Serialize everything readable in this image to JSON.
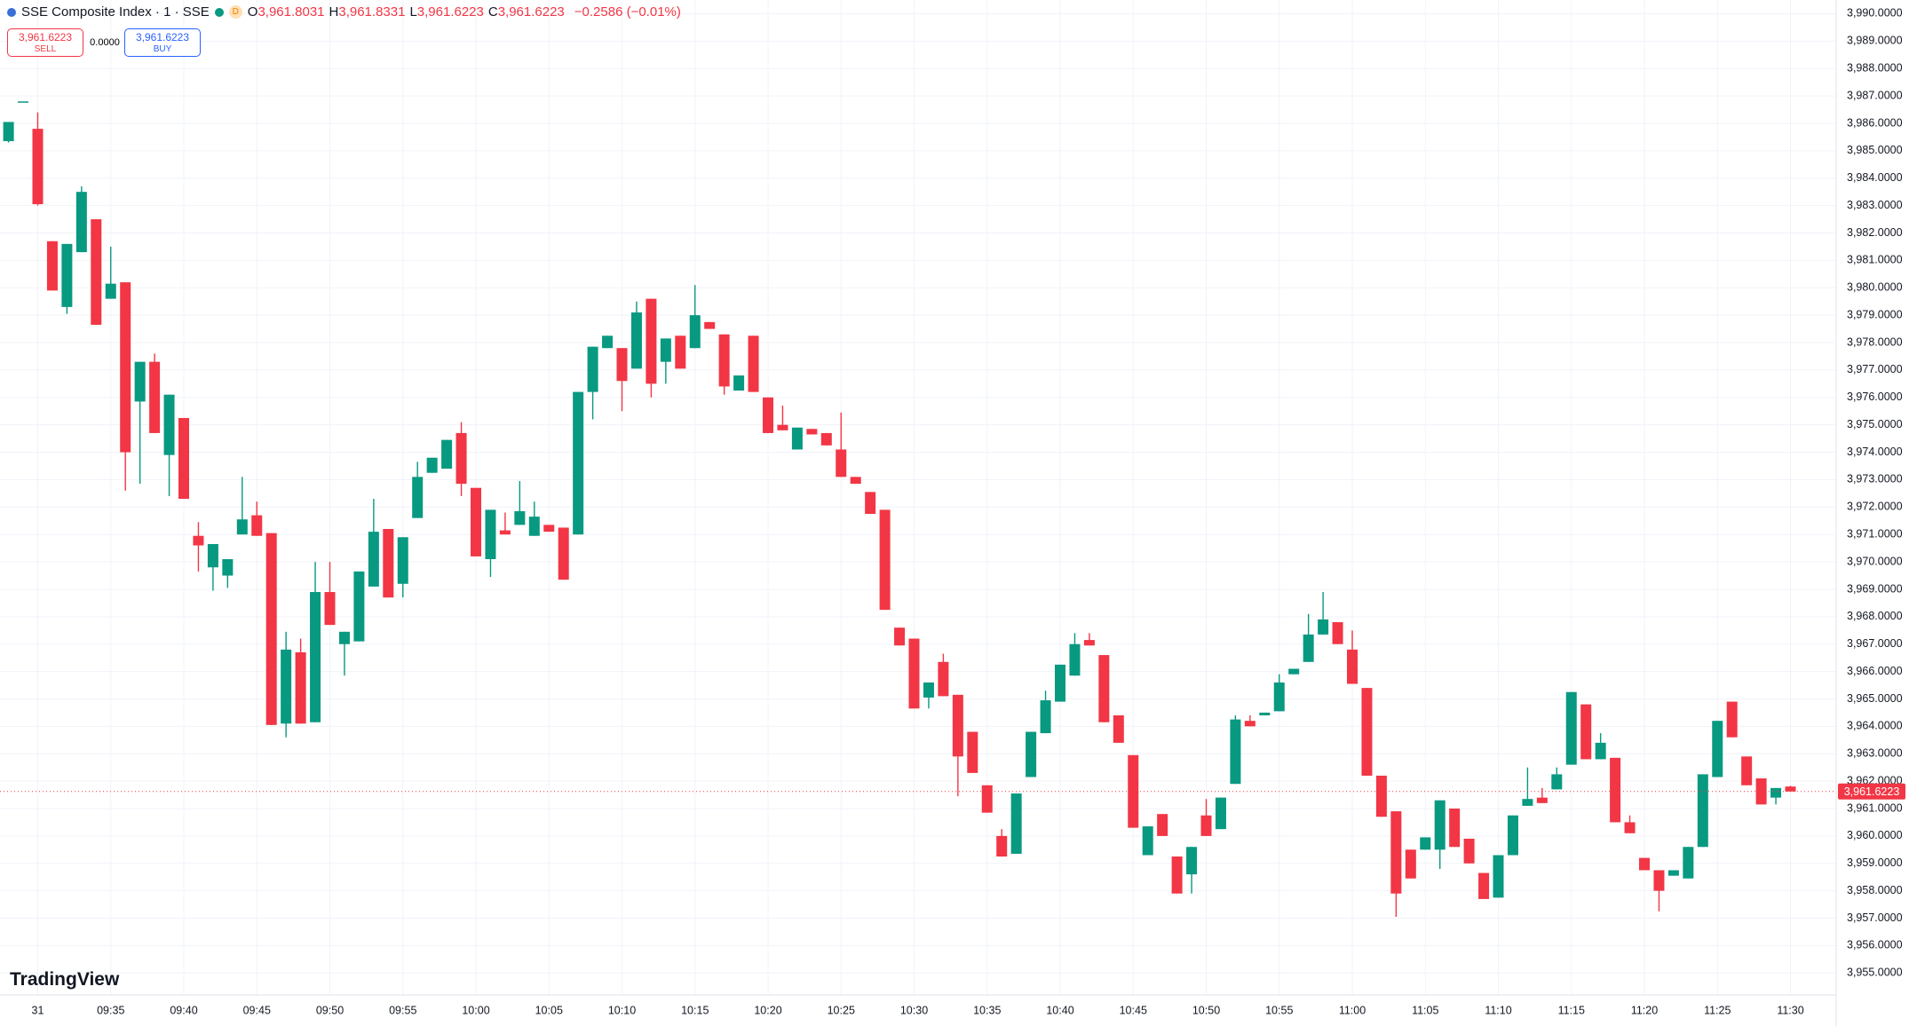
{
  "header": {
    "symbol": "SSE Composite Index · 1 · SSE",
    "badge": "D",
    "ohlc": [
      {
        "key": "O",
        "value": "3,961.8031"
      },
      {
        "key": "H",
        "value": "3,961.8331"
      },
      {
        "key": "L",
        "value": "3,961.6223"
      },
      {
        "key": "C",
        "value": "3,961.6223"
      }
    ],
    "change": "−0.2586 (−0.01%)"
  },
  "trade": {
    "sell_price": "3,961.6223",
    "sell": "SELL",
    "spread": "0.0000",
    "buy_price": "3,961.6223",
    "buy": "BUY"
  },
  "brand": "TradingView",
  "chart_data": {
    "type": "candlestick",
    "up_color": "#089981",
    "down_color": "#f23645",
    "grid": true,
    "categories": [
      null,
      null,
      "31",
      null,
      null,
      null,
      null,
      "09:35",
      null,
      null,
      null,
      null,
      "09:40",
      null,
      null,
      null,
      null,
      "09:45",
      null,
      null,
      null,
      null,
      "09:50",
      null,
      null,
      null,
      null,
      "09:55",
      null,
      null,
      null,
      null,
      "10:00",
      null,
      null,
      null,
      null,
      "10:05",
      null,
      null,
      null,
      null,
      "10:10",
      null,
      null,
      null,
      null,
      "10:15",
      null,
      null,
      null,
      null,
      "10:20",
      null,
      null,
      null,
      null,
      "10:25",
      null,
      null,
      null,
      null,
      "10:30",
      null,
      null,
      null,
      null,
      "10:35",
      null,
      null,
      null,
      null,
      "10:40",
      null,
      null,
      null,
      null,
      "10:45",
      null,
      null,
      null,
      null,
      "10:50",
      null,
      null,
      null,
      null,
      "10:55",
      null,
      null,
      null,
      null,
      "11:00",
      null,
      null,
      null,
      null,
      "11:05",
      null,
      null,
      null,
      null,
      "11:10",
      null,
      null,
      null,
      null,
      "11:15",
      null,
      null,
      null,
      null,
      "11:20",
      null,
      null,
      null,
      null,
      "11:25",
      null,
      null,
      null,
      null,
      "11:30"
    ],
    "open": [
      3985.35,
      3986.8,
      3985.8,
      3981.7,
      3979.3,
      3981.3,
      3982.5,
      3979.6,
      3980.2,
      3975.85,
      3977.3,
      3973.9,
      3975.25,
      3970.95,
      3969.8,
      3969.5,
      3971.0,
      3971.7,
      3971.05,
      3964.1,
      3966.7,
      3964.15,
      3968.9,
      3967.0,
      3967.1,
      3969.1,
      3971.2,
      3969.2,
      3971.6,
      3973.25,
      3973.4,
      3974.7,
      3972.7,
      3970.1,
      3971.15,
      3971.35,
      3970.95,
      3971.35,
      3971.25,
      3971.0,
      3976.2,
      3977.8,
      3977.8,
      3977.05,
      3979.6,
      3977.3,
      3978.25,
      3977.8,
      3978.75,
      3978.3,
      3976.25,
      3978.25,
      3976.0,
      3975.0,
      3974.1,
      3974.85,
      3974.7,
      3974.1,
      3973.1,
      3972.55,
      3971.9,
      3967.6,
      3967.2,
      3965.05,
      3966.35,
      3965.15,
      3963.8,
      3961.85,
      3960.0,
      3959.35,
      3962.15,
      3963.75,
      3964.9,
      3965.85,
      3967.15,
      3966.6,
      3964.4,
      3962.95,
      3959.3,
      3960.8,
      3959.25,
      3958.6,
      3960.75,
      3960.25,
      3961.9,
      3964.2,
      3964.4,
      3964.55,
      3965.9,
      3966.35,
      3967.35,
      3967.8,
      3966.8,
      3965.4,
      3962.2,
      3960.9,
      3959.5,
      3959.5,
      3959.5,
      3961.0,
      3959.9,
      3958.65,
      3957.75,
      3959.3,
      3961.1,
      3961.4,
      3961.7,
      3962.6,
      3964.8,
      3962.8,
      3962.85,
      3960.5,
      3959.2,
      3958.75,
      3958.55,
      3958.45,
      3959.6,
      3962.15,
      3964.9,
      3962.9,
      3962.1,
      3961.4,
      3961.8031
    ],
    "high": [
      3986.05,
      3986.8,
      3986.4,
      3981.7,
      3981.6,
      3983.7,
      3982.5,
      3981.5,
      3980.2,
      3977.3,
      3977.6,
      3976.1,
      3975.25,
      3971.45,
      3970.65,
      3970.1,
      3973.1,
      3972.2,
      3971.05,
      3967.45,
      3967.2,
      3970.0,
      3970.0,
      3967.45,
      3969.65,
      3972.3,
      3971.2,
      3970.9,
      3973.65,
      3973.8,
      3974.45,
      3975.1,
      3972.7,
      3971.9,
      3971.8,
      3972.95,
      3972.2,
      3971.35,
      3971.25,
      3976.2,
      3977.85,
      3978.25,
      3977.8,
      3979.5,
      3979.6,
      3978.15,
      3978.25,
      3980.1,
      3978.75,
      3978.3,
      3976.8,
      3978.25,
      3976.0,
      3975.7,
      3974.9,
      3974.85,
      3974.7,
      3975.45,
      3973.1,
      3972.55,
      3971.9,
      3967.6,
      3967.2,
      3965.6,
      3966.65,
      3965.15,
      3963.8,
      3961.85,
      3960.25,
      3961.55,
      3963.8,
      3965.3,
      3966.25,
      3967.4,
      3967.4,
      3966.6,
      3964.4,
      3962.95,
      3960.35,
      3960.8,
      3959.25,
      3959.6,
      3961.35,
      3961.4,
      3964.4,
      3964.4,
      3964.5,
      3965.9,
      3966.1,
      3968.1,
      3968.9,
      3967.8,
      3967.5,
      3965.4,
      3962.2,
      3960.9,
      3959.5,
      3959.95,
      3961.3,
      3961.0,
      3959.9,
      3958.65,
      3959.3,
      3960.75,
      3962.5,
      3961.75,
      3962.5,
      3965.25,
      3964.8,
      3963.75,
      3962.85,
      3960.75,
      3959.2,
      3958.75,
      3958.75,
      3959.6,
      3962.25,
      3964.2,
      3964.9,
      3962.9,
      3962.1,
      3961.75,
      3961.8331
    ],
    "low": [
      3985.3,
      3986.8,
      3983.0,
      3979.9,
      3979.05,
      3981.3,
      3978.65,
      3979.6,
      3972.6,
      3972.85,
      3974.7,
      3972.4,
      3972.3,
      3969.65,
      3968.95,
      3969.05,
      3971.0,
      3970.95,
      3964.05,
      3963.6,
      3964.1,
      3964.15,
      3967.7,
      3965.85,
      3967.1,
      3969.1,
      3968.7,
      3968.7,
      3971.6,
      3973.25,
      3973.4,
      3972.4,
      3970.2,
      3969.45,
      3971.0,
      3971.35,
      3970.95,
      3971.1,
      3969.35,
      3971.0,
      3975.2,
      3977.8,
      3975.5,
      3977.05,
      3976.0,
      3976.5,
      3977.05,
      3977.8,
      3978.5,
      3976.1,
      3976.25,
      3976.2,
      3974.7,
      3974.8,
      3974.1,
      3974.65,
      3974.25,
      3973.1,
      3972.85,
      3971.75,
      3968.25,
      3966.95,
      3964.65,
      3964.65,
      3965.1,
      3961.45,
      3962.3,
      3960.85,
      3959.25,
      3959.35,
      3962.15,
      3963.75,
      3964.9,
      3965.85,
      3966.95,
      3964.15,
      3963.4,
      3960.3,
      3959.3,
      3960.0,
      3957.9,
      3957.9,
      3960.0,
      3960.25,
      3961.9,
      3964.0,
      3964.4,
      3964.55,
      3965.9,
      3966.35,
      3967.35,
      3967.0,
      3965.55,
      3962.2,
      3960.7,
      3957.05,
      3958.45,
      3959.5,
      3958.8,
      3959.6,
      3959.0,
      3957.7,
      3957.75,
      3959.3,
      3961.1,
      3961.2,
      3961.7,
      3962.6,
      3962.8,
      3962.8,
      3960.5,
      3960.1,
      3958.75,
      3957.25,
      3958.55,
      3958.45,
      3959.6,
      3962.15,
      3963.6,
      3961.85,
      3961.15,
      3961.15,
      3961.6223
    ],
    "close": [
      3986.05,
      3986.8,
      3983.05,
      3979.9,
      3981.6,
      3983.5,
      3978.65,
      3980.15,
      3974.0,
      3977.3,
      3974.7,
      3976.1,
      3972.3,
      3970.6,
      3970.65,
      3970.1,
      3971.55,
      3970.95,
      3964.05,
      3966.8,
      3964.1,
      3968.9,
      3967.7,
      3967.45,
      3969.65,
      3971.1,
      3968.7,
      3970.9,
      3973.1,
      3973.8,
      3974.45,
      3972.85,
      3970.2,
      3971.9,
      3971.0,
      3971.85,
      3971.65,
      3971.1,
      3969.35,
      3976.2,
      3977.85,
      3978.25,
      3976.6,
      3979.1,
      3976.5,
      3978.15,
      3977.05,
      3979.0,
      3978.5,
      3976.4,
      3976.8,
      3976.2,
      3974.7,
      3974.8,
      3974.9,
      3974.65,
      3974.25,
      3973.1,
      3972.85,
      3971.75,
      3968.25,
      3966.95,
      3964.65,
      3965.6,
      3965.1,
      3962.9,
      3962.3,
      3960.85,
      3959.25,
      3961.55,
      3963.8,
      3964.95,
      3966.25,
      3967.0,
      3966.95,
      3964.15,
      3963.4,
      3960.3,
      3960.35,
      3960.0,
      3957.9,
      3959.6,
      3960.0,
      3961.4,
      3964.25,
      3964.0,
      3964.5,
      3965.6,
      3966.1,
      3967.35,
      3967.9,
      3967.0,
      3965.55,
      3962.2,
      3960.7,
      3957.9,
      3958.45,
      3959.95,
      3961.3,
      3959.6,
      3959.0,
      3957.7,
      3959.3,
      3960.75,
      3961.35,
      3961.2,
      3962.25,
      3965.25,
      3962.8,
      3963.4,
      3960.5,
      3960.1,
      3958.75,
      3958.0,
      3958.75,
      3959.6,
      3962.25,
      3964.2,
      3963.6,
      3961.85,
      3961.15,
      3961.75,
      3961.6223
    ],
    "last_price": {
      "value": 3961.6223,
      "label": "3,961.6223"
    },
    "ylim": [
      3954.2,
      3990.5
    ],
    "yticks": [
      {
        "value": 3955,
        "label": "3,955.0000"
      },
      {
        "value": 3956,
        "label": "3,956.0000"
      },
      {
        "value": 3957,
        "label": "3,957.0000"
      },
      {
        "value": 3958,
        "label": "3,958.0000"
      },
      {
        "value": 3959,
        "label": "3,959.0000"
      },
      {
        "value": 3960,
        "label": "3,960.0000"
      },
      {
        "value": 3961,
        "label": "3,961.0000"
      },
      {
        "value": 3962,
        "label": "3,962.0000"
      },
      {
        "value": 3963,
        "label": "3,963.0000"
      },
      {
        "value": 3964,
        "label": "3,964.0000"
      },
      {
        "value": 3965,
        "label": "3,965.0000"
      },
      {
        "value": 3966,
        "label": "3,966.0000"
      },
      {
        "value": 3967,
        "label": "3,967.0000"
      },
      {
        "value": 3968,
        "label": "3,968.0000"
      },
      {
        "value": 3969,
        "label": "3,969.0000"
      },
      {
        "value": 3970,
        "label": "3,970.0000"
      },
      {
        "value": 3971,
        "label": "3,971.0000"
      },
      {
        "value": 3972,
        "label": "3,972.0000"
      },
      {
        "value": 3973,
        "label": "3,973.0000"
      },
      {
        "value": 3974,
        "label": "3,974.0000"
      },
      {
        "value": 3975,
        "label": "3,975.0000"
      },
      {
        "value": 3976,
        "label": "3,976.0000"
      },
      {
        "value": 3977,
        "label": "3,977.0000"
      },
      {
        "value": 3978,
        "label": "3,978.0000"
      },
      {
        "value": 3979,
        "label": "3,979.0000"
      },
      {
        "value": 3980,
        "label": "3,980.0000"
      },
      {
        "value": 3981,
        "label": "3,981.0000"
      },
      {
        "value": 3982,
        "label": "3,982.0000"
      },
      {
        "value": 3983,
        "label": "3,983.0000"
      },
      {
        "value": 3984,
        "label": "3,984.0000"
      },
      {
        "value": 3985,
        "label": "3,985.0000"
      },
      {
        "value": 3986,
        "label": "3,986.0000"
      },
      {
        "value": 3987,
        "label": "3,987.0000"
      },
      {
        "value": 3988,
        "label": "3,988.0000"
      },
      {
        "value": 3989,
        "label": "3,989.0000"
      },
      {
        "value": 3990,
        "label": "3,990.0000"
      }
    ]
  }
}
